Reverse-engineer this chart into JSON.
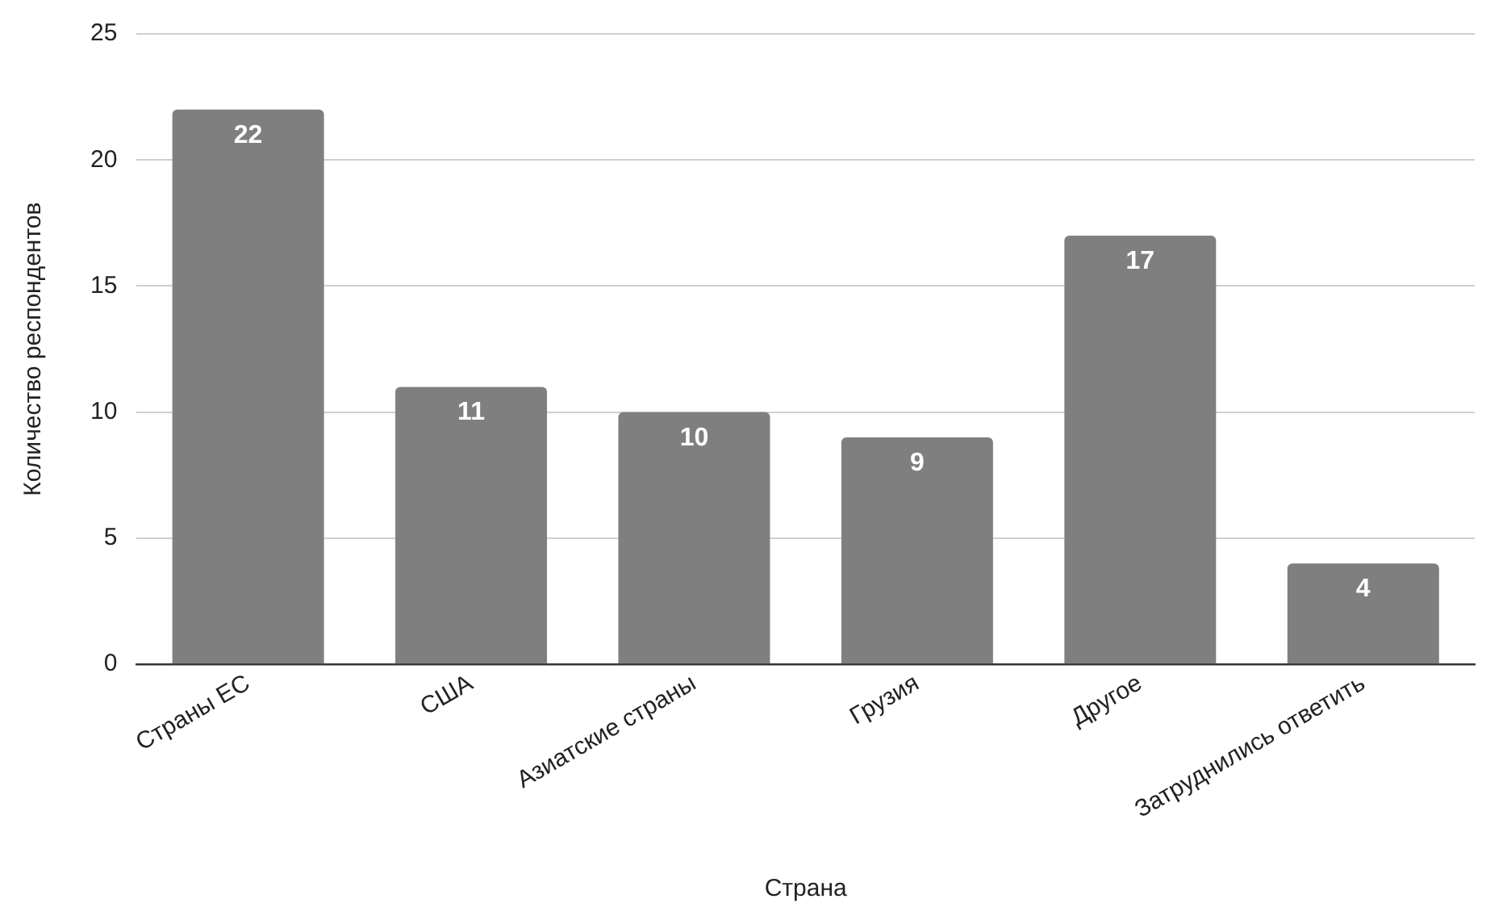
{
  "chart_data": {
    "type": "bar",
    "xlabel": "Страна",
    "ylabel": "Количество респондентов",
    "categories": [
      "Страны ЕС",
      "США",
      "Азиатские страны",
      "Грузия",
      "Другое",
      "Затруднились ответить"
    ],
    "values": [
      22,
      11,
      10,
      9,
      17,
      4
    ],
    "color": "#7f7f7f",
    "ylim": [
      0,
      25
    ],
    "yticks": [
      0,
      5,
      10,
      15,
      20,
      25
    ],
    "grid": "y",
    "data_labels": true,
    "legend": false
  }
}
